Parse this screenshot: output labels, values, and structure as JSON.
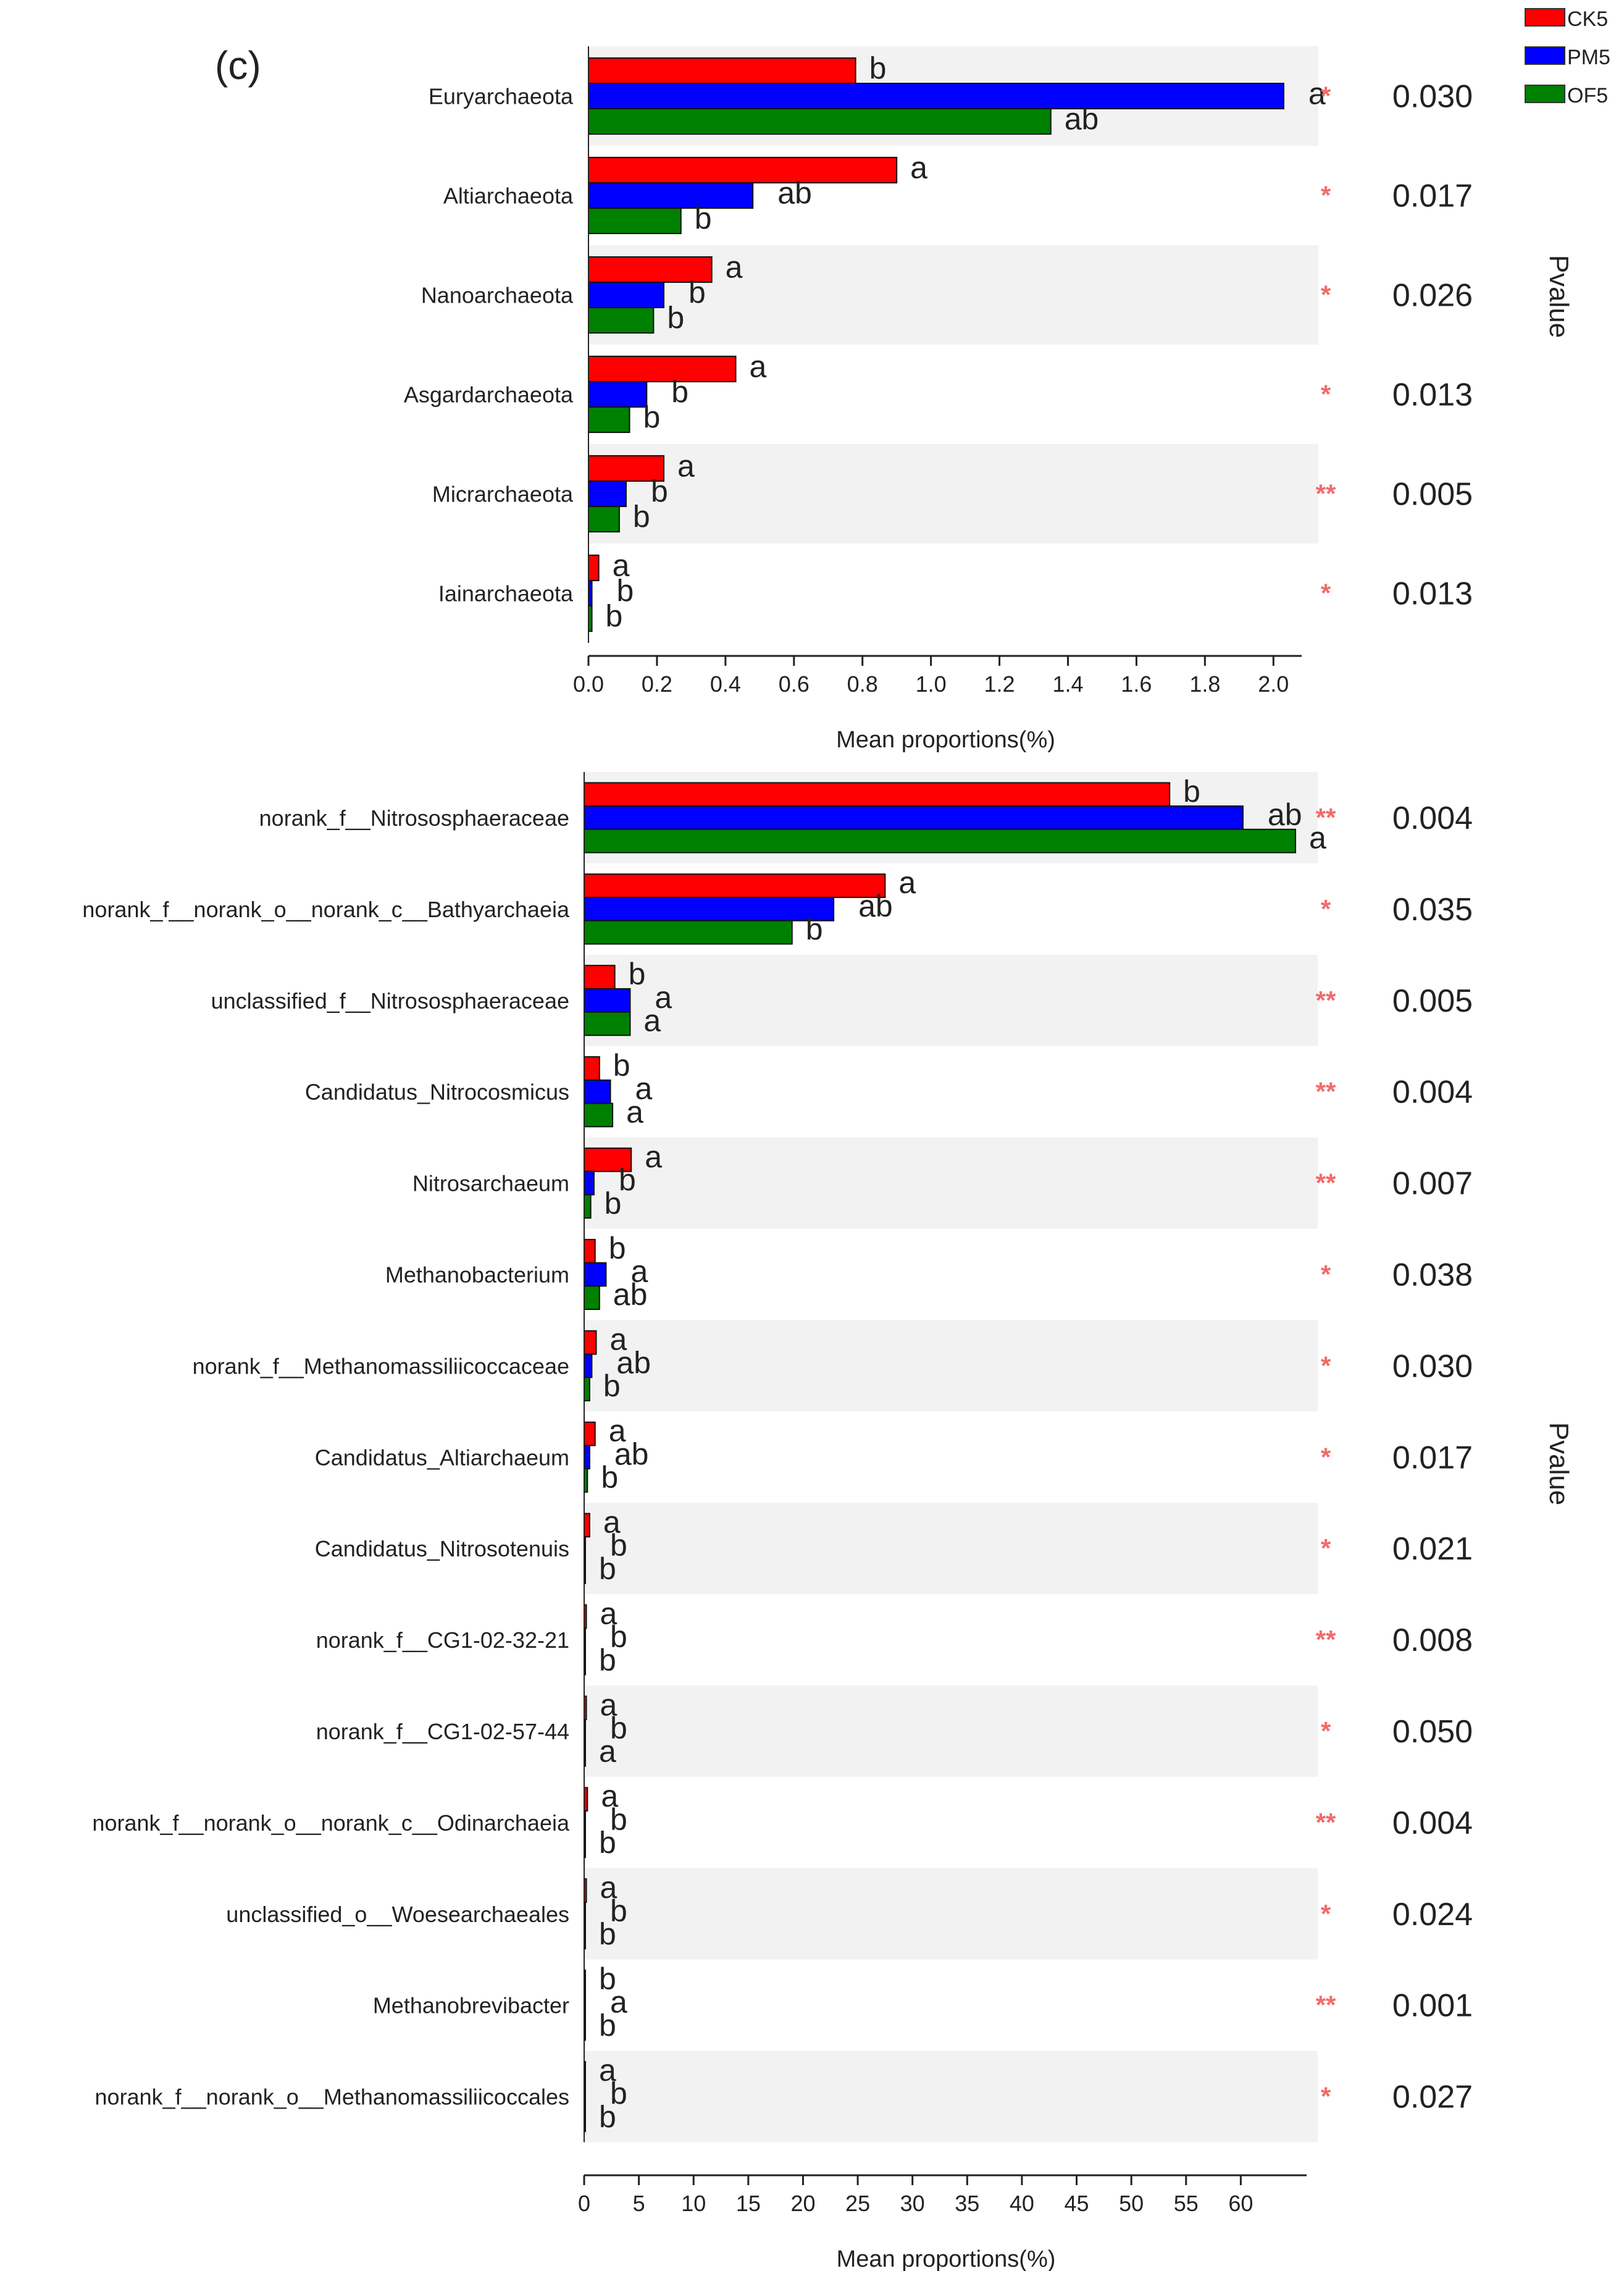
{
  "panel_label": "(c)",
  "legend": [
    {
      "name": "CK5",
      "color": "#ff0000"
    },
    {
      "name": "PM5",
      "color": "#0000ff"
    },
    {
      "name": "OF5",
      "color": "#008000"
    }
  ],
  "chart_data": [
    {
      "type": "bar",
      "orientation": "horizontal",
      "title": "",
      "xlabel": "Mean proportions(%)",
      "side_label": "Pvalue",
      "xlim": [
        0,
        2.05
      ],
      "ticks": [
        0.0,
        0.2,
        0.4,
        0.6,
        0.8,
        1.0,
        1.2,
        1.4,
        1.6,
        1.8,
        2.0
      ],
      "tick_labels": [
        "0.0",
        "0.2",
        "0.4",
        "0.6",
        "0.8",
        "1.0",
        "1.2",
        "1.4",
        "1.6",
        "1.8",
        "2.0"
      ],
      "series_names": [
        "CK5",
        "PM5",
        "OF5"
      ],
      "categories": [
        {
          "name": "Euryarchaeota",
          "values": [
            0.78,
            2.03,
            1.35
          ],
          "letters": [
            "b",
            "a",
            "ab"
          ],
          "stars": "*",
          "pvalue": "0.030"
        },
        {
          "name": "Altiarchaeota",
          "values": [
            0.9,
            0.48,
            0.27
          ],
          "letters": [
            "a",
            "ab",
            "b"
          ],
          "stars": "*",
          "pvalue": "0.017"
        },
        {
          "name": "Nanoarchaeota",
          "values": [
            0.36,
            0.22,
            0.19
          ],
          "letters": [
            "a",
            "b",
            "b"
          ],
          "stars": "*",
          "pvalue": "0.026"
        },
        {
          "name": "Asgardarchaeota",
          "values": [
            0.43,
            0.17,
            0.12
          ],
          "letters": [
            "a",
            "b",
            "b"
          ],
          "stars": "*",
          "pvalue": "0.013"
        },
        {
          "name": "Micrarchaeota",
          "values": [
            0.22,
            0.11,
            0.09
          ],
          "letters": [
            "a",
            "b",
            "b"
          ],
          "stars": "**",
          "pvalue": "0.005"
        },
        {
          "name": "Iainarchaeota",
          "values": [
            0.03,
            0.01,
            0.01
          ],
          "letters": [
            "a",
            "b",
            "b"
          ],
          "stars": "*",
          "pvalue": "0.013"
        }
      ]
    },
    {
      "type": "bar",
      "orientation": "horizontal",
      "title": "",
      "xlabel": "Mean proportions(%)",
      "side_label": "Pvalue",
      "xlim": [
        0,
        65
      ],
      "ticks": [
        0,
        5,
        10,
        15,
        20,
        25,
        30,
        35,
        40,
        45,
        50,
        55,
        60
      ],
      "tick_labels": [
        "0",
        "5",
        "10",
        "15",
        "20",
        "25",
        "30",
        "35",
        "40",
        "45",
        "50",
        "55",
        "60"
      ],
      "series_names": [
        "CK5",
        "PM5",
        "OF5"
      ],
      "categories": [
        {
          "name": "norank_f__Nitrososphaeraceae",
          "values": [
            53.5,
            60.2,
            65.0
          ],
          "letters": [
            "b",
            "ab",
            "a"
          ],
          "stars": "**",
          "pvalue": "0.004"
        },
        {
          "name": "norank_f__norank_o__norank_c__Bathyarchaeia",
          "values": [
            27.5,
            22.8,
            19.0
          ],
          "letters": [
            "a",
            "ab",
            "b"
          ],
          "stars": "*",
          "pvalue": "0.035"
        },
        {
          "name": "unclassified_f__Nitrososphaeraceae",
          "values": [
            2.8,
            4.2,
            4.2
          ],
          "letters": [
            "b",
            "a",
            "a"
          ],
          "stars": "**",
          "pvalue": "0.005"
        },
        {
          "name": "Candidatus_Nitrocosmicus",
          "values": [
            1.4,
            2.4,
            2.6
          ],
          "letters": [
            "b",
            "a",
            "a"
          ],
          "stars": "**",
          "pvalue": "0.004"
        },
        {
          "name": "Nitrosarchaeum",
          "values": [
            4.3,
            0.9,
            0.6
          ],
          "letters": [
            "a",
            "b",
            "b"
          ],
          "stars": "**",
          "pvalue": "0.007"
        },
        {
          "name": "Methanobacterium",
          "values": [
            1.0,
            2.0,
            1.4
          ],
          "letters": [
            "b",
            "a",
            "ab"
          ],
          "stars": "*",
          "pvalue": "0.038"
        },
        {
          "name": "norank_f__Methanomassiliicoccaceae",
          "values": [
            1.1,
            0.7,
            0.5
          ],
          "letters": [
            "a",
            "ab",
            "b"
          ],
          "stars": "*",
          "pvalue": "0.030"
        },
        {
          "name": "Candidatus_Altiarchaeum",
          "values": [
            1.0,
            0.5,
            0.3
          ],
          "letters": [
            "a",
            "ab",
            "b"
          ],
          "stars": "*",
          "pvalue": "0.017"
        },
        {
          "name": "Candidatus_Nitrosotenuis",
          "values": [
            0.5,
            0.1,
            0.1
          ],
          "letters": [
            "a",
            "b",
            "b"
          ],
          "stars": "*",
          "pvalue": "0.021"
        },
        {
          "name": "norank_f__CG1-02-32-21",
          "values": [
            0.2,
            0.1,
            0.1
          ],
          "letters": [
            "a",
            "b",
            "b"
          ],
          "stars": "**",
          "pvalue": "0.008"
        },
        {
          "name": "norank_f__CG1-02-57-44",
          "values": [
            0.2,
            0.1,
            0.1
          ],
          "letters": [
            "a",
            "b",
            "a"
          ],
          "stars": "*",
          "pvalue": "0.050"
        },
        {
          "name": "norank_f__norank_o__norank_c__Odinarchaeia",
          "values": [
            0.3,
            0.1,
            0.1
          ],
          "letters": [
            "a",
            "b",
            "b"
          ],
          "stars": "**",
          "pvalue": "0.004"
        },
        {
          "name": "unclassified_o__Woesearchaeales",
          "values": [
            0.2,
            0.1,
            0.1
          ],
          "letters": [
            "a",
            "b",
            "b"
          ],
          "stars": "*",
          "pvalue": "0.024"
        },
        {
          "name": "Methanobrevibacter",
          "values": [
            0.1,
            0.1,
            0.1
          ],
          "letters": [
            "b",
            "a",
            "b"
          ],
          "stars": "**",
          "pvalue": "0.001"
        },
        {
          "name": "norank_f__norank_o__Methanomassiliicoccales",
          "values": [
            0.1,
            0.1,
            0.1
          ],
          "letters": [
            "a",
            "b",
            "b"
          ],
          "stars": "*",
          "pvalue": "0.027"
        }
      ]
    }
  ]
}
